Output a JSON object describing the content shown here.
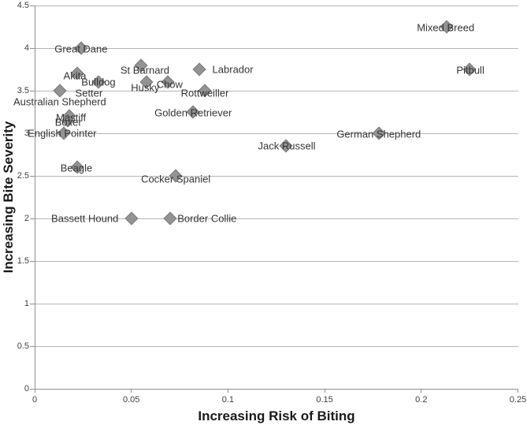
{
  "chart_data": {
    "type": "scatter",
    "title": "",
    "xlabel": "Increasing Risk of Biting",
    "ylabel": "Increasing Bite Severity",
    "xlim": [
      0,
      0.25
    ],
    "ylim": [
      0,
      4.5
    ],
    "x_ticks": [
      "0",
      "0.05",
      "0.1",
      "0.15",
      "0.2",
      "0.25"
    ],
    "y_ticks": [
      "0",
      "0.5",
      "1",
      "1.5",
      "2",
      "2.5",
      "3",
      "3.5",
      "4",
      "4.5"
    ],
    "grid": "horizontal-only",
    "legend": "none",
    "marker_shape": "diamond",
    "marker_color": "#939393",
    "points": [
      {
        "name": "Great Dane",
        "x": 0.024,
        "y": 4.0
      },
      {
        "name": "Mixed Breed",
        "x": 0.213,
        "y": 4.25,
        "label_offset": [
          -1,
          1
        ]
      },
      {
        "name": "St Barnard",
        "x": 0.055,
        "y": 3.8,
        "label_offset": [
          5,
          6
        ]
      },
      {
        "name": "Labrador",
        "x": 0.085,
        "y": 3.75,
        "label_offset": [
          43,
          0
        ]
      },
      {
        "name": "Pitbull",
        "x": 0.225,
        "y": 3.75,
        "label_offset": [
          1,
          1
        ]
      },
      {
        "name": "Akita",
        "x": 0.022,
        "y": 3.7,
        "label_offset": [
          -3,
          3
        ]
      },
      {
        "name": "Bulldog",
        "x": 0.033,
        "y": 3.6,
        "label_offset": [
          0,
          0
        ]
      },
      {
        "name": "Husky",
        "x": 0.058,
        "y": 3.6,
        "label_offset": [
          -2,
          7
        ]
      },
      {
        "name": "Chow",
        "x": 0.069,
        "y": 3.6,
        "label_offset": [
          2,
          3
        ]
      },
      {
        "name": "Setter",
        "x": 0.013,
        "y": 3.5,
        "label_offset": [
          37,
          3
        ]
      },
      {
        "name": "Australian Shepherd",
        "x": 0.013,
        "y": 3.5,
        "label_offset": [
          0,
          14
        ]
      },
      {
        "name": "Rottweiller",
        "x": 0.088,
        "y": 3.5,
        "label_offset": [
          0,
          3
        ]
      },
      {
        "name": "Golden Retriever",
        "x": 0.082,
        "y": 3.25
      },
      {
        "name": "Mastiff",
        "x": 0.018,
        "y": 3.2,
        "label_offset": [
          2,
          2
        ]
      },
      {
        "name": "Boxer",
        "x": 0.017,
        "y": 3.15,
        "label_offset": [
          1,
          2
        ]
      },
      {
        "name": "English Pointer",
        "x": 0.015,
        "y": 3.0,
        "label_offset": [
          -2,
          0
        ]
      },
      {
        "name": "German Shepherd",
        "x": 0.178,
        "y": 3.0
      },
      {
        "name": "Jack Russell",
        "x": 0.13,
        "y": 2.85,
        "label_offset": [
          1,
          0
        ]
      },
      {
        "name": "Beagle",
        "x": 0.022,
        "y": 2.6,
        "label_offset": [
          -1,
          1
        ]
      },
      {
        "name": "Cocker Spaniel",
        "x": 0.073,
        "y": 2.5,
        "label_offset": [
          0,
          4
        ]
      },
      {
        "name": "Bassett Hound",
        "x": 0.05,
        "y": 2.0,
        "label_offset": [
          -59,
          0
        ]
      },
      {
        "name": "Border Collie",
        "x": 0.07,
        "y": 2.0,
        "label_offset": [
          47,
          0
        ]
      }
    ]
  }
}
